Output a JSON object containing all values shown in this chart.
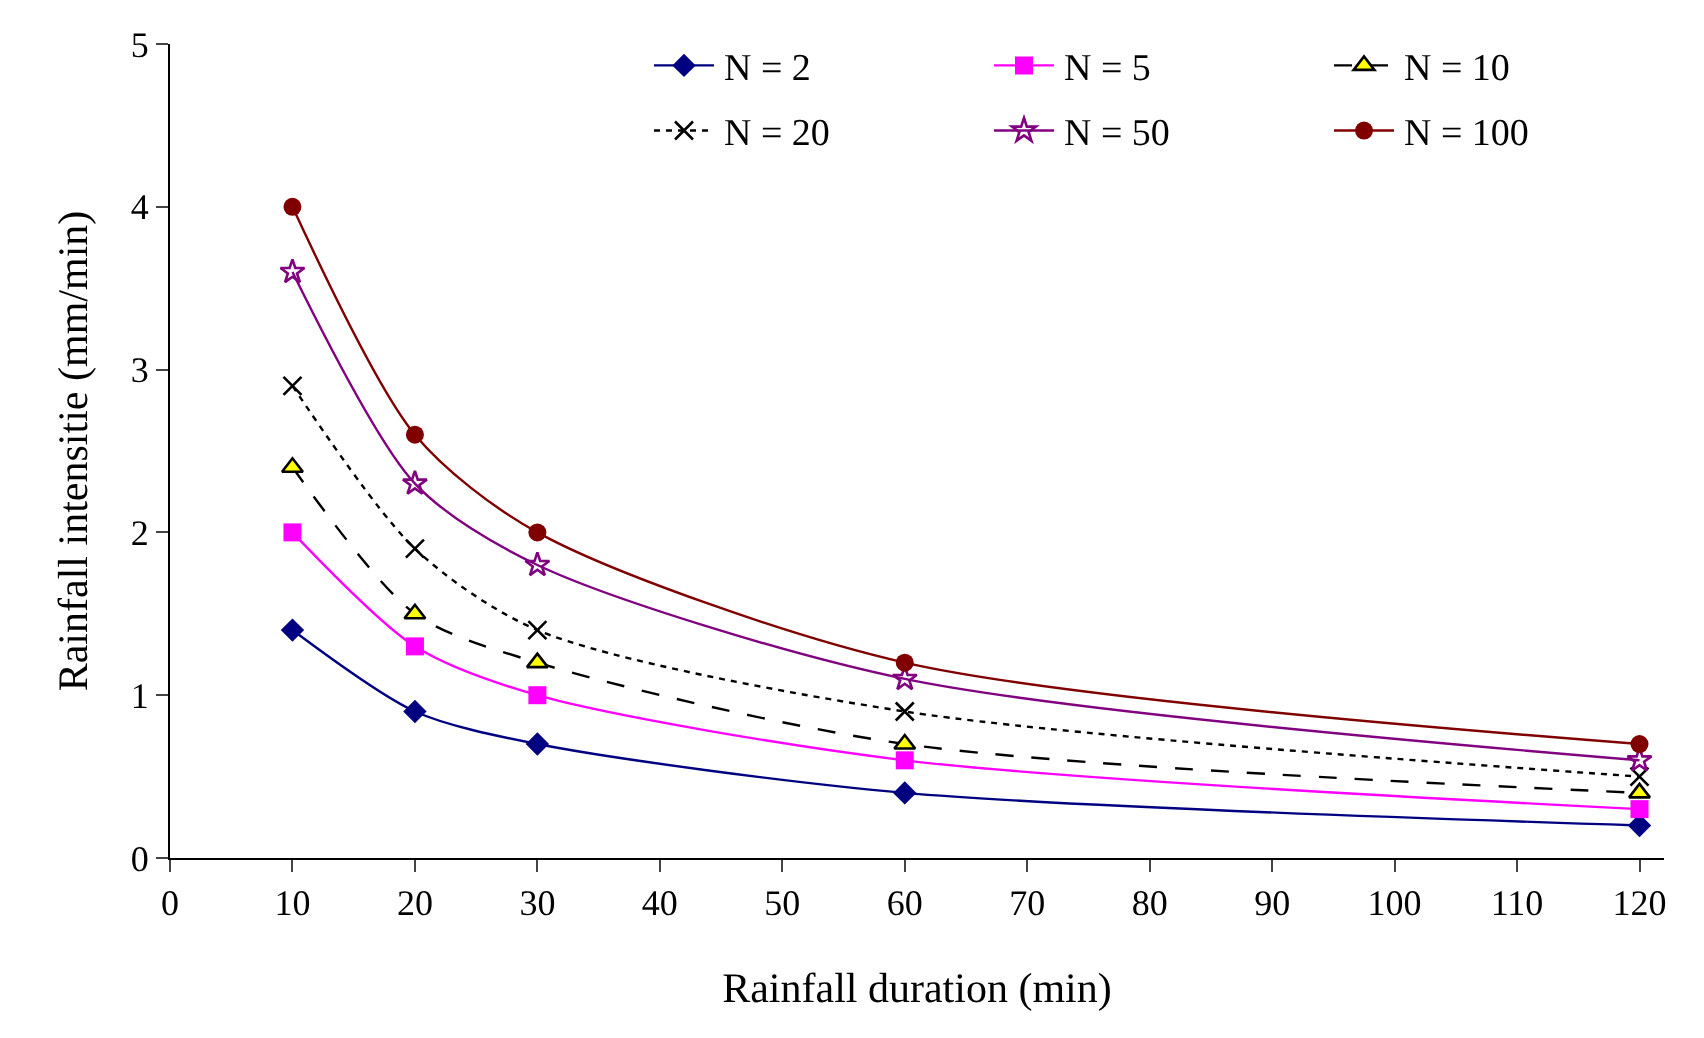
{
  "chart_data": {
    "type": "line",
    "xlabel": "Rainfall duration (min)",
    "ylabel": "Rainfall intensitie (mm/min)",
    "x": [
      10,
      20,
      30,
      60,
      120
    ],
    "xlim": [
      0,
      122
    ],
    "xticks": [
      0,
      10,
      20,
      30,
      40,
      50,
      60,
      70,
      80,
      90,
      100,
      110,
      120
    ],
    "ylim": [
      0,
      5
    ],
    "yticks": [
      0,
      1,
      2,
      3,
      4,
      5
    ],
    "grid": false,
    "legend": "top right",
    "series": [
      {
        "name": "N = 2",
        "color": "#000080",
        "values": [
          1.4,
          0.9,
          0.7,
          0.4,
          0.2
        ],
        "marker": "diamond",
        "line_style": "solid"
      },
      {
        "name": "N = 5",
        "color": "#ff00ff",
        "values": [
          2.0,
          1.3,
          1.0,
          0.6,
          0.3
        ],
        "marker": "square",
        "line_style": "solid"
      },
      {
        "name": "N = 10",
        "color": "#000000",
        "values": [
          2.4,
          1.5,
          1.2,
          0.7,
          0.4
        ],
        "marker": "triangle",
        "line_style": "dashed"
      },
      {
        "name": "N = 20",
        "color": "#000000",
        "values": [
          2.9,
          1.9,
          1.4,
          0.9,
          0.5
        ],
        "marker": "cross",
        "line_style": "dotted"
      },
      {
        "name": "N = 50",
        "color": "#800080",
        "values": [
          3.6,
          2.3,
          1.8,
          1.1,
          0.6
        ],
        "marker": "star",
        "line_style": "solid"
      },
      {
        "name": "N = 100",
        "color": "#800000",
        "values": [
          4.0,
          2.6,
          2.0,
          1.2,
          0.7
        ],
        "marker": "circle",
        "line_style": "solid"
      }
    ]
  }
}
